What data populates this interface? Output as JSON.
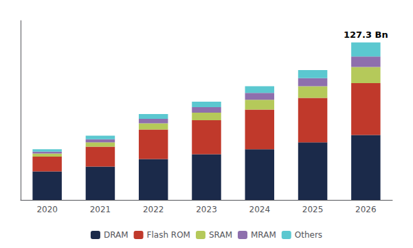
{
  "chart_data": {
    "type": "bar",
    "stacked": true,
    "categories": [
      "2020",
      "2021",
      "2022",
      "2023",
      "2024",
      "2025",
      "2026"
    ],
    "series": [
      {
        "name": "DRAM",
        "color": "#1b2a4a",
        "values": [
          23.0,
          27.0,
          33.0,
          37.0,
          41.0,
          46.5,
          52.5
        ]
      },
      {
        "name": "Flash ROM",
        "color": "#c0392b",
        "values": [
          12.0,
          16.0,
          24.0,
          27.5,
          32.0,
          36.0,
          42.0
        ]
      },
      {
        "name": "SRAM",
        "color": "#b5c95a",
        "values": [
          2.5,
          3.5,
          5.0,
          6.0,
          8.0,
          9.5,
          13.0
        ]
      },
      {
        "name": "MRAM",
        "color": "#8e6fad",
        "values": [
          1.5,
          2.5,
          3.5,
          4.5,
          5.5,
          6.5,
          8.5
        ]
      },
      {
        "name": "Others",
        "color": "#5bc8d0",
        "values": [
          2.0,
          3.0,
          4.0,
          4.5,
          5.5,
          6.5,
          11.3
        ]
      }
    ],
    "annotations": [
      {
        "text": "127.3 Bn",
        "x": "2026"
      }
    ],
    "ylim": [
      0,
      145
    ],
    "tick_labels": "x",
    "grid": false,
    "legend": "bottom"
  }
}
